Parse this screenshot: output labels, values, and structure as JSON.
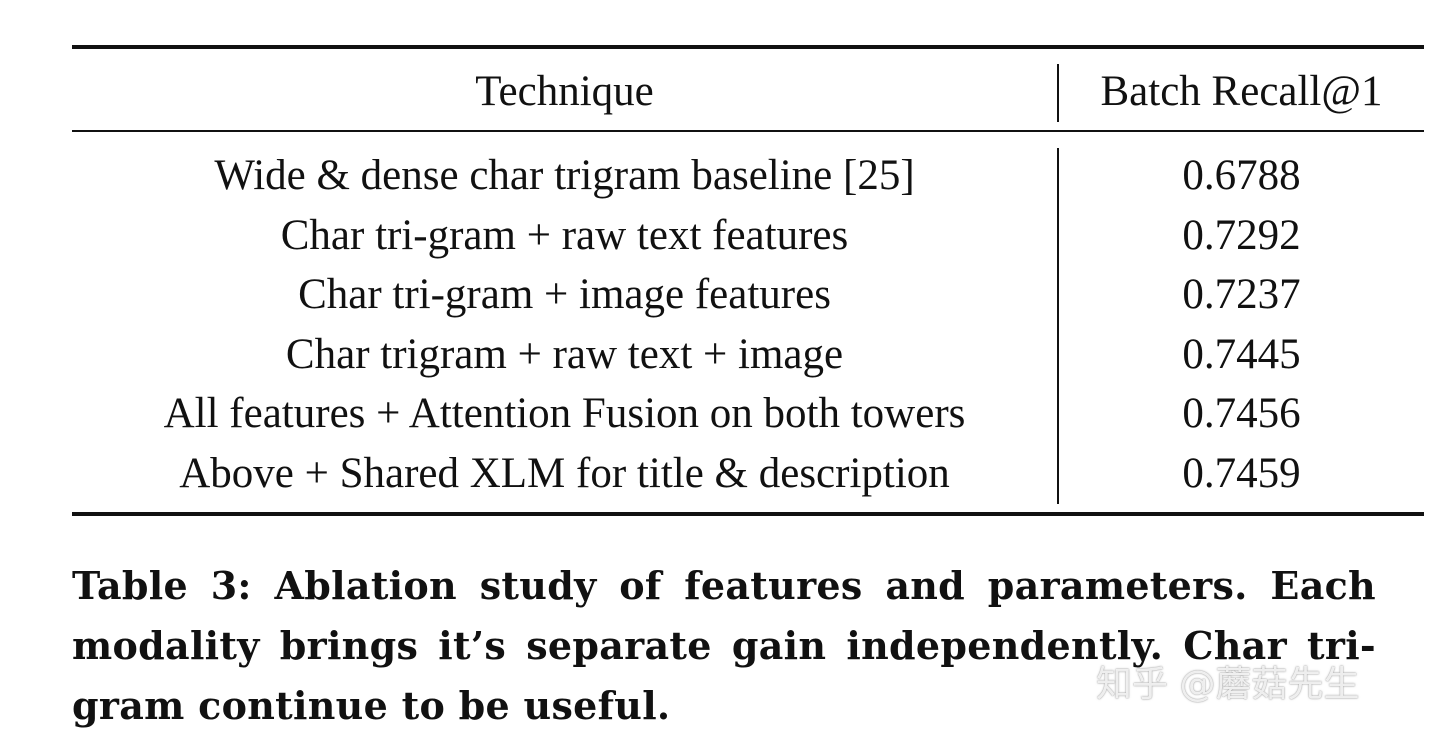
{
  "table": {
    "headers": {
      "technique": "Technique",
      "metric": "Batch Recall@1"
    },
    "rows": [
      {
        "technique": "Wide & dense char trigram baseline [25]",
        "value": "0.6788"
      },
      {
        "technique": "Char tri-gram + raw text features",
        "value": "0.7292"
      },
      {
        "technique": "Char tri-gram + image features",
        "value": "0.7237"
      },
      {
        "technique": "Char trigram + raw text + image",
        "value": "0.7445"
      },
      {
        "technique": "All features + Attention Fusion on both towers",
        "value": "0.7456"
      },
      {
        "technique": "Above + Shared XLM for title & description",
        "value": "0.7459"
      }
    ]
  },
  "caption": "Table 3: Ablation study of features and parameters. Each modality brings it’s separate gain independently. Char tri-gram continue to be useful.",
  "watermark": "知乎 @蘑菇先生"
}
